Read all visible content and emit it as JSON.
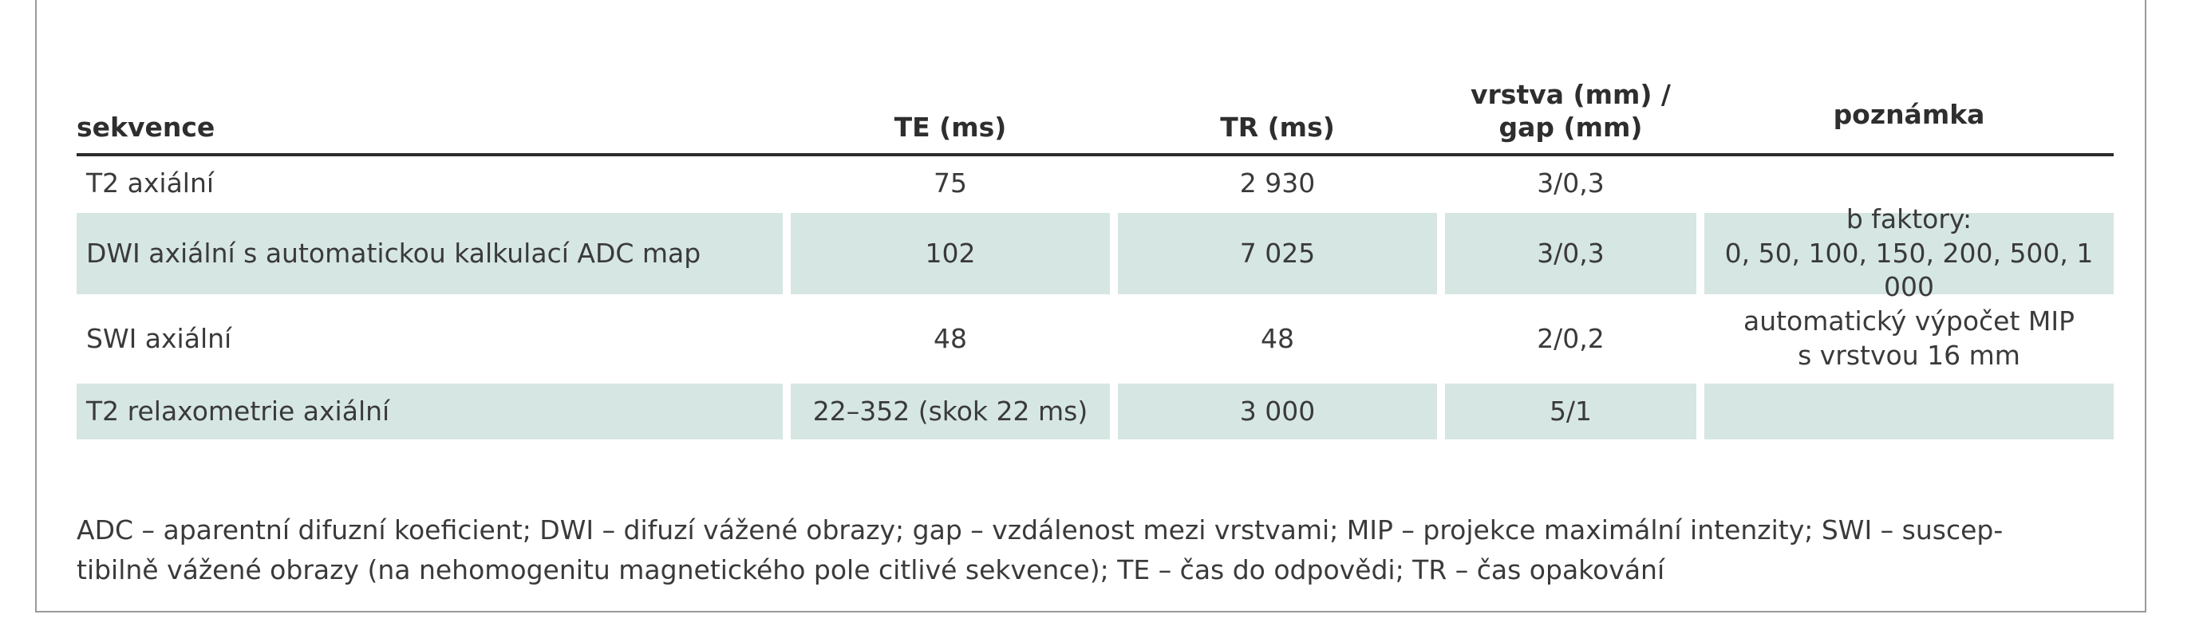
{
  "table": {
    "headers": {
      "sekvence": "sekvence",
      "te": "TE (ms)",
      "tr": "TR (ms)",
      "vrstva_line1": "vrstva (mm) /",
      "vrstva_line2": "gap (mm)",
      "poznamka": "poznámka"
    },
    "rows": [
      {
        "sekvence": "T2 axiální",
        "te": "75",
        "tr": "2 930",
        "vrstva": "3/0,3",
        "poznamka_line1": "",
        "poznamka_line2": ""
      },
      {
        "sekvence": "DWI axiální s automatickou kalkulací ADC map",
        "te": "102",
        "tr": "7 025",
        "vrstva": "3/0,3",
        "poznamka_line1": "b faktory:",
        "poznamka_line2": "0, 50, 100, 150, 200, 500, 1 000"
      },
      {
        "sekvence": "SWI axiální",
        "te": "48",
        "tr": "48",
        "vrstva": "2/0,2",
        "poznamka_line1": "automatický výpočet MIP",
        "poznamka_line2": "s vrstvou 16 mm"
      },
      {
        "sekvence": "T2 relaxometrie axiální",
        "te": "22–352 (skok 22 ms)",
        "tr": "3 000",
        "vrstva": "5/1",
        "poznamka_line1": "",
        "poznamka_line2": ""
      }
    ]
  },
  "footnote": {
    "line1": "ADC – aparentní difuzní koeficient; DWI – difuzí vážené obrazy; gap – vzdálenost mezi vrstvami; MIP – projekce maximální intenzity; SWI – suscep-",
    "line2": "tibilně vážené obrazy (na nehomogenitu magnetického pole citlivé sekvence); TE – čas do odpovědi; TR – čas opakování"
  },
  "colors": {
    "row_shade": "#d6e6e3",
    "header_rule": "#2b2b2b",
    "frame_border": "#9a9a9a",
    "text": "#3a3a3a"
  }
}
